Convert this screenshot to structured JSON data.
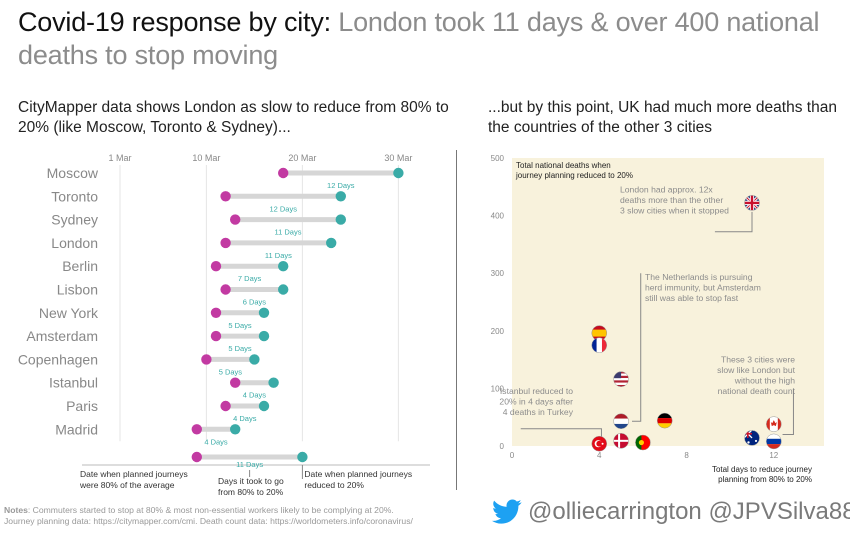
{
  "title": {
    "lead": "Covid-19 response by city:",
    "rest": "London took 11 days & over 400 national deaths to stop moving"
  },
  "left_subtitle": "CityMapper data shows London as slow to reduce from 80% to 20% (like Moscow, Toronto & Sydney)...",
  "right_subtitle": "...but by this point, UK had much more deaths than the countries of the other 3 cities",
  "notes": {
    "label": "Notes",
    "line1": ": Commuters started to stop at 80% & most non-essential workers likely to be complying at 20%.",
    "line2": "Journey planning data: https://citymapper.com/cmi. Death count data: https://worldometers.info/coronavirus/"
  },
  "handles": "@olliecarrington @JPVSilva88",
  "colors": {
    "start": "#c23aa2",
    "end": "#3aaba7",
    "bar": "#d6d6d6",
    "days_text": "#3aaba7",
    "panel_bg": "#f8f2dc",
    "twitter": "#1da1f2"
  },
  "chart_data": [
    {
      "type": "dumbbell",
      "x_axis": {
        "unit": "date",
        "ticks": [
          {
            "value": "2020-03-01",
            "label": "1 Mar"
          },
          {
            "value": "2020-03-10",
            "label": "10 Mar"
          },
          {
            "value": "2020-03-20",
            "label": "20 Mar"
          },
          {
            "value": "2020-03-30",
            "label": "30 Mar"
          }
        ]
      },
      "rows": [
        {
          "city": "Moscow",
          "start": "2020-03-18",
          "end": "2020-03-30",
          "days_label": "12 Days"
        },
        {
          "city": "Toronto",
          "start": "2020-03-12",
          "end": "2020-03-24",
          "days_label": "12 Days"
        },
        {
          "city": "Sydney",
          "start": "2020-03-13",
          "end": "2020-03-24",
          "days_label": "11 Days"
        },
        {
          "city": "London",
          "start": "2020-03-12",
          "end": "2020-03-23",
          "days_label": "11 Days"
        },
        {
          "city": "Berlin",
          "start": "2020-03-11",
          "end": "2020-03-18",
          "days_label": "7 Days"
        },
        {
          "city": "Lisbon",
          "start": "2020-03-12",
          "end": "2020-03-18",
          "days_label": "6 Days"
        },
        {
          "city": "New York",
          "start": "2020-03-11",
          "end": "2020-03-16",
          "days_label": "5 Days"
        },
        {
          "city": "Amsterdam",
          "start": "2020-03-11",
          "end": "2020-03-16",
          "days_label": "5 Days"
        },
        {
          "city": "Copenhagen",
          "start": "2020-03-10",
          "end": "2020-03-15",
          "days_label": "5 Days"
        },
        {
          "city": "Istanbul",
          "start": "2020-03-13",
          "end": "2020-03-17",
          "days_label": "4 Days"
        },
        {
          "city": "Paris",
          "start": "2020-03-12",
          "end": "2020-03-16",
          "days_label": "4 Days"
        },
        {
          "city": "Madrid",
          "start": "2020-03-09",
          "end": "2020-03-13",
          "days_label": "4 Days"
        }
      ],
      "legend": {
        "example": {
          "start": "2020-03-09",
          "end": "2020-03-20",
          "days_label": "11 Days"
        },
        "start_label": [
          "Date when planned journeys",
          "were 80% of the average"
        ],
        "duration_label": [
          "Days it took to go",
          "from 80% to 20%"
        ],
        "end_label": [
          "Date when planned journeys",
          "reduced to 20%"
        ]
      }
    },
    {
      "type": "scatter",
      "xlabel": [
        "Total days to reduce journey",
        "planning from 80% to 20%"
      ],
      "ylabel": [
        "Total national deaths when",
        "journey planning reduced to 20%"
      ],
      "xlim": [
        0,
        14.3
      ],
      "ylim": [
        0,
        500
      ],
      "xticks": [
        0,
        4,
        8,
        12
      ],
      "yticks": [
        0,
        100,
        200,
        300,
        400,
        500
      ],
      "grid": false,
      "points": [
        {
          "country": "UK",
          "flag": "gb-flag",
          "days": 11,
          "deaths": 422
        },
        {
          "country": "Spain",
          "flag": "es-flag",
          "days": 4,
          "deaths": 196
        },
        {
          "country": "France",
          "flag": "fr-flag",
          "days": 4,
          "deaths": 175
        },
        {
          "country": "USA",
          "flag": "us-flag",
          "days": 5,
          "deaths": 116
        },
        {
          "country": "Netherlands",
          "flag": "nl-flag",
          "days": 5,
          "deaths": 43
        },
        {
          "country": "Germany",
          "flag": "de-flag",
          "days": 7,
          "deaths": 44
        },
        {
          "country": "Canada",
          "flag": "ca-flag",
          "days": 12,
          "deaths": 38
        },
        {
          "country": "Turkey",
          "flag": "tr-flag",
          "days": 4,
          "deaths": 4
        },
        {
          "country": "Denmark",
          "flag": "dk-flag",
          "days": 5,
          "deaths": 9
        },
        {
          "country": "Portugal",
          "flag": "pt-flag",
          "days": 6,
          "deaths": 6
        },
        {
          "country": "Australia",
          "flag": "au-flag",
          "days": 11,
          "deaths": 14
        },
        {
          "country": "Russia",
          "flag": "ru-flag",
          "days": 12,
          "deaths": 8
        }
      ],
      "annotations": [
        {
          "name": "uk-annotation",
          "lines": [
            "London had approx. 12x",
            "deaths more than the other",
            "3 slow cities when it stopped"
          ]
        },
        {
          "name": "netherlands-annotation",
          "lines": [
            "The Netherlands is pursuing",
            "herd immunity, but Amsterdam",
            "still was able to stop fast"
          ]
        },
        {
          "name": "istanbul-annotation",
          "lines": [
            "Istanbul reduced to",
            "20% in 4 days after",
            "4 deaths in Turkey"
          ]
        },
        {
          "name": "slow-cities-annotation",
          "lines": [
            "These 3 cities were",
            "slow like London but",
            "without the high",
            "national death count"
          ]
        }
      ]
    }
  ]
}
